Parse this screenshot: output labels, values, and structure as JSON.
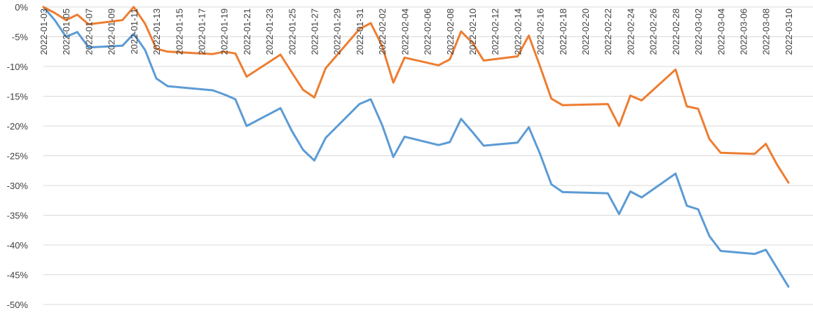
{
  "chart_data": {
    "type": "line",
    "title": "",
    "xlabel": "",
    "ylabel": "",
    "ylim": [
      -0.5,
      0
    ],
    "grid": true,
    "y_ticks": [
      "0%",
      "-5%",
      "-10%",
      "-15%",
      "-20%",
      "-25%",
      "-30%",
      "-35%",
      "-40%",
      "-45%",
      "-50%"
    ],
    "x_tick_labels": [
      "2022-01-03",
      "2022-01-05",
      "2022-01-07",
      "2022-01-09",
      "2022-01-11",
      "2022-01-13",
      "2022-01-15",
      "2022-01-17",
      "2022-01-19",
      "2022-01-21",
      "2022-01-23",
      "2022-01-25",
      "2022-01-27",
      "2022-01-29",
      "2022-01-31",
      "2022-02-02",
      "2022-02-04",
      "2022-02-06",
      "2022-02-08",
      "2022-02-10",
      "2022-02-12",
      "2022-02-14",
      "2022-02-16",
      "2022-02-18",
      "2022-02-20",
      "2022-02-22",
      "2022-02-24",
      "2022-02-26",
      "2022-02-28",
      "2022-03-02",
      "2022-03-04",
      "2022-03-06",
      "2022-03-08",
      "2022-03-10"
    ],
    "x_range": [
      "2022-01-03",
      "2022-03-11"
    ],
    "series": [
      {
        "color": "#5b9bd5",
        "points": [
          [
            "2022-01-03",
            0.0
          ],
          [
            "2022-01-04",
            -0.022
          ],
          [
            "2022-01-05",
            -0.05
          ],
          [
            "2022-01-06",
            -0.042
          ],
          [
            "2022-01-07",
            -0.068
          ],
          [
            "2022-01-10",
            -0.065
          ],
          [
            "2022-01-11",
            -0.045
          ],
          [
            "2022-01-12",
            -0.072
          ],
          [
            "2022-01-13",
            -0.12
          ],
          [
            "2022-01-14",
            -0.133
          ],
          [
            "2022-01-18",
            -0.14
          ],
          [
            "2022-01-19",
            -0.147
          ],
          [
            "2022-01-20",
            -0.155
          ],
          [
            "2022-01-21",
            -0.2
          ],
          [
            "2022-01-24",
            -0.17
          ],
          [
            "2022-01-25",
            -0.208
          ],
          [
            "2022-01-26",
            -0.24
          ],
          [
            "2022-01-27",
            -0.258
          ],
          [
            "2022-01-28",
            -0.22
          ],
          [
            "2022-01-31",
            -0.163
          ],
          [
            "2022-02-01",
            -0.155
          ],
          [
            "2022-02-02",
            -0.198
          ],
          [
            "2022-02-03",
            -0.252
          ],
          [
            "2022-02-04",
            -0.218
          ],
          [
            "2022-02-07",
            -0.232
          ],
          [
            "2022-02-08",
            -0.227
          ],
          [
            "2022-02-09",
            -0.188
          ],
          [
            "2022-02-10",
            -0.21
          ],
          [
            "2022-02-11",
            -0.233
          ],
          [
            "2022-02-14",
            -0.228
          ],
          [
            "2022-02-15",
            -0.202
          ],
          [
            "2022-02-16",
            -0.247
          ],
          [
            "2022-02-17",
            -0.298
          ],
          [
            "2022-02-18",
            -0.311
          ],
          [
            "2022-02-22",
            -0.313
          ],
          [
            "2022-02-23",
            -0.348
          ],
          [
            "2022-02-24",
            -0.31
          ],
          [
            "2022-02-25",
            -0.32
          ],
          [
            "2022-02-28",
            -0.28
          ],
          [
            "2022-03-01",
            -0.334
          ],
          [
            "2022-03-02",
            -0.34
          ],
          [
            "2022-03-03",
            -0.385
          ],
          [
            "2022-03-04",
            -0.41
          ],
          [
            "2022-03-07",
            -0.415
          ],
          [
            "2022-03-08",
            -0.408
          ],
          [
            "2022-03-10",
            -0.47
          ]
        ]
      },
      {
        "color": "#ed7d31",
        "points": [
          [
            "2022-01-03",
            0.0
          ],
          [
            "2022-01-04",
            -0.01
          ],
          [
            "2022-01-05",
            -0.022
          ],
          [
            "2022-01-06",
            -0.013
          ],
          [
            "2022-01-07",
            -0.029
          ],
          [
            "2022-01-10",
            -0.022
          ],
          [
            "2022-01-11",
            0.0
          ],
          [
            "2022-01-12",
            -0.028
          ],
          [
            "2022-01-13",
            -0.07
          ],
          [
            "2022-01-14",
            -0.075
          ],
          [
            "2022-01-18",
            -0.079
          ],
          [
            "2022-01-19",
            -0.075
          ],
          [
            "2022-01-20",
            -0.078
          ],
          [
            "2022-01-21",
            -0.117
          ],
          [
            "2022-01-24",
            -0.08
          ],
          [
            "2022-01-25",
            -0.11
          ],
          [
            "2022-01-26",
            -0.139
          ],
          [
            "2022-01-27",
            -0.152
          ],
          [
            "2022-01-28",
            -0.103
          ],
          [
            "2022-01-31",
            -0.037
          ],
          [
            "2022-02-01",
            -0.027
          ],
          [
            "2022-02-02",
            -0.065
          ],
          [
            "2022-02-03",
            -0.127
          ],
          [
            "2022-02-04",
            -0.085
          ],
          [
            "2022-02-07",
            -0.098
          ],
          [
            "2022-02-08",
            -0.088
          ],
          [
            "2022-02-09",
            -0.041
          ],
          [
            "2022-02-10",
            -0.06
          ],
          [
            "2022-02-11",
            -0.09
          ],
          [
            "2022-02-14",
            -0.083
          ],
          [
            "2022-02-15",
            -0.048
          ],
          [
            "2022-02-16",
            -0.1
          ],
          [
            "2022-02-17",
            -0.154
          ],
          [
            "2022-02-18",
            -0.165
          ],
          [
            "2022-02-22",
            -0.163
          ],
          [
            "2022-02-23",
            -0.2
          ],
          [
            "2022-02-24",
            -0.149
          ],
          [
            "2022-02-25",
            -0.157
          ],
          [
            "2022-02-28",
            -0.105
          ],
          [
            "2022-03-01",
            -0.167
          ],
          [
            "2022-03-02",
            -0.171
          ],
          [
            "2022-03-03",
            -0.222
          ],
          [
            "2022-03-04",
            -0.245
          ],
          [
            "2022-03-07",
            -0.247
          ],
          [
            "2022-03-08",
            -0.23
          ],
          [
            "2022-03-09",
            -0.265
          ],
          [
            "2022-03-10",
            -0.295
          ]
        ]
      }
    ]
  }
}
